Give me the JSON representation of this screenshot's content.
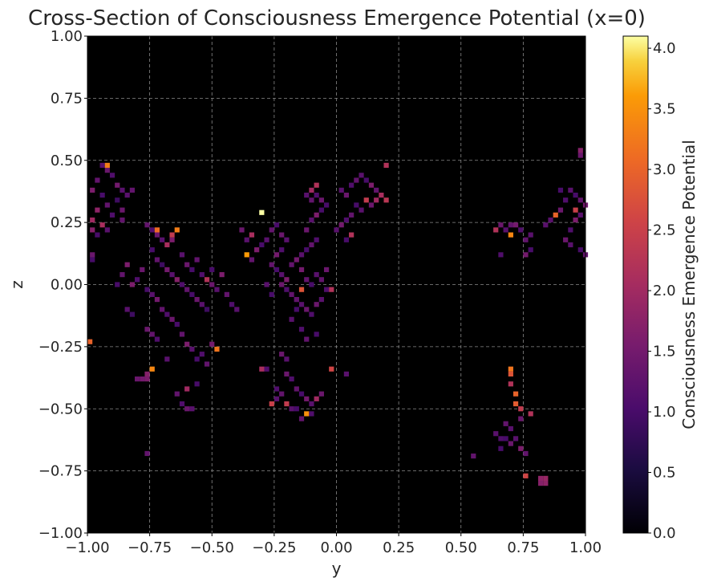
{
  "chart_data": {
    "type": "heatmap",
    "title": "Cross-Section of Consciousness Emergence Potential (x=0)",
    "xlabel": "y",
    "ylabel": "z",
    "xlim": [
      -1.0,
      1.0
    ],
    "ylim": [
      -1.0,
      1.0
    ],
    "xticks": [
      "−1.00",
      "−0.75",
      "−0.50",
      "−0.25",
      "0.00",
      "0.25",
      "0.50",
      "0.75",
      "1.00"
    ],
    "yticks": [
      "1.00",
      "0.75",
      "0.50",
      "0.25",
      "0.00",
      "−0.25",
      "−0.50",
      "−0.75",
      "−1.00"
    ],
    "grid": true,
    "colormap": "inferno",
    "background": "#000000",
    "colorbar": {
      "label": "Consciousness Emergence Potential",
      "range": [
        0.0,
        4.1
      ],
      "ticks": [
        "4.0",
        "3.5",
        "3.0",
        "2.5",
        "2.0",
        "1.5",
        "1.0",
        "0.5",
        "0.0"
      ]
    },
    "cell_size": 0.02,
    "points": [
      [
        -0.94,
        0.48,
        1.2
      ],
      [
        -0.92,
        0.46,
        1.4
      ],
      [
        -0.9,
        0.44,
        1.1
      ],
      [
        -0.96,
        0.42,
        1.3
      ],
      [
        -0.98,
        0.38,
        1.6
      ],
      [
        -0.94,
        0.36,
        1.0
      ],
      [
        -0.88,
        0.4,
        1.5
      ],
      [
        -0.86,
        0.38,
        1.2
      ],
      [
        -0.92,
        0.32,
        1.3
      ],
      [
        -0.96,
        0.3,
        1.8
      ],
      [
        -0.98,
        0.26,
        2.0
      ],
      [
        -0.9,
        0.28,
        1.1
      ],
      [
        -0.86,
        0.3,
        1.4
      ],
      [
        -0.88,
        0.34,
        0.9
      ],
      [
        -0.84,
        0.36,
        1.2
      ],
      [
        -0.82,
        0.38,
        1.3
      ],
      [
        -0.94,
        0.24,
        2.1
      ],
      [
        -0.92,
        0.22,
        1.2
      ],
      [
        -0.96,
        0.2,
        1.0
      ],
      [
        -0.98,
        0.22,
        1.7
      ],
      [
        -0.92,
        0.48,
        3.3
      ],
      [
        -0.98,
        0.12,
        1.4
      ],
      [
        -0.98,
        0.1,
        1.0
      ],
      [
        -0.86,
        0.26,
        1.3
      ],
      [
        -0.76,
        0.24,
        1.3
      ],
      [
        -0.74,
        0.22,
        1.1
      ],
      [
        -0.72,
        0.2,
        1.4
      ],
      [
        -0.7,
        0.18,
        1.2
      ],
      [
        -0.68,
        0.16,
        2.1
      ],
      [
        -0.66,
        0.18,
        1.6
      ],
      [
        -0.74,
        0.14,
        1.0
      ],
      [
        -0.72,
        0.1,
        1.3
      ],
      [
        -0.7,
        0.08,
        0.9
      ],
      [
        -0.68,
        0.06,
        1.5
      ],
      [
        -0.66,
        0.04,
        1.2
      ],
      [
        -0.64,
        0.02,
        1.7
      ],
      [
        -0.62,
        0.0,
        1.1
      ],
      [
        -0.6,
        -0.02,
        1.3
      ],
      [
        -0.58,
        -0.04,
        1.0
      ],
      [
        -0.56,
        -0.06,
        1.4
      ],
      [
        -0.54,
        -0.08,
        1.2
      ],
      [
        -0.52,
        -0.1,
        0.9
      ],
      [
        -0.78,
        0.06,
        1.4
      ],
      [
        -0.8,
        0.02,
        1.1
      ],
      [
        -0.82,
        0.0,
        1.6
      ],
      [
        -0.76,
        -0.02,
        1.0
      ],
      [
        -0.74,
        -0.04,
        1.2
      ],
      [
        -0.72,
        -0.06,
        1.5
      ],
      [
        -0.7,
        -0.1,
        1.3
      ],
      [
        -0.68,
        -0.12,
        1.1
      ],
      [
        -0.66,
        -0.14,
        1.4
      ],
      [
        -0.64,
        -0.16,
        1.0
      ],
      [
        -0.62,
        -0.2,
        1.3
      ],
      [
        -0.6,
        -0.24,
        1.6
      ],
      [
        -0.58,
        -0.26,
        1.2
      ],
      [
        -0.56,
        -0.3,
        1.0
      ],
      [
        -0.74,
        -0.2,
        1.3
      ],
      [
        -0.72,
        -0.22,
        1.1
      ],
      [
        -0.76,
        -0.18,
        1.4
      ],
      [
        -0.84,
        0.08,
        1.6
      ],
      [
        -0.86,
        0.04,
        1.3
      ],
      [
        -0.88,
        0.0,
        1.0
      ],
      [
        -0.84,
        -0.1,
        1.2
      ],
      [
        -0.82,
        -0.12,
        0.9
      ],
      [
        -0.72,
        0.22,
        3.1
      ],
      [
        -0.66,
        0.2,
        2.4
      ],
      [
        -0.64,
        0.22,
        3.3
      ],
      [
        -0.62,
        0.12,
        1.2
      ],
      [
        -0.6,
        0.08,
        1.4
      ],
      [
        -0.58,
        0.06,
        1.0
      ],
      [
        -0.56,
        0.1,
        1.3
      ],
      [
        -0.54,
        0.04,
        1.1
      ],
      [
        -0.52,
        0.02,
        2.2
      ],
      [
        -0.5,
        0.0,
        1.4
      ],
      [
        -0.48,
        -0.02,
        1.2
      ],
      [
        -0.5,
        0.06,
        1.0
      ],
      [
        -0.46,
        0.04,
        1.6
      ],
      [
        -0.44,
        -0.04,
        1.3
      ],
      [
        -0.42,
        -0.08,
        1.1
      ],
      [
        -0.4,
        -0.1,
        1.2
      ],
      [
        -0.76,
        -0.36,
        1.7
      ],
      [
        -0.74,
        -0.34,
        3.4
      ],
      [
        -0.78,
        -0.38,
        1.5
      ],
      [
        -0.76,
        -0.38,
        1.6
      ],
      [
        -0.8,
        -0.38,
        1.4
      ],
      [
        -0.68,
        -0.3,
        1.2
      ],
      [
        -0.64,
        -0.44,
        1.3
      ],
      [
        -0.62,
        -0.48,
        1.1
      ],
      [
        -0.6,
        -0.5,
        1.4
      ],
      [
        -0.58,
        -0.5,
        1.2
      ],
      [
        -0.6,
        -0.42,
        2.0
      ],
      [
        -0.56,
        -0.4,
        1.0
      ],
      [
        -0.5,
        -0.24,
        1.5
      ],
      [
        -0.48,
        -0.26,
        3.2
      ],
      [
        -0.54,
        -0.28,
        1.1
      ],
      [
        -0.52,
        -0.32,
        1.3
      ],
      [
        -0.76,
        -0.68,
        1.3
      ],
      [
        -1.0,
        -0.23,
        3.0
      ],
      [
        -0.38,
        0.22,
        1.4
      ],
      [
        -0.36,
        0.18,
        1.2
      ],
      [
        -0.34,
        0.2,
        2.1
      ],
      [
        -0.36,
        0.12,
        3.6
      ],
      [
        -0.34,
        0.1,
        1.3
      ],
      [
        -0.32,
        0.14,
        1.6
      ],
      [
        -0.3,
        0.16,
        1.0
      ],
      [
        -0.28,
        0.18,
        1.2
      ],
      [
        -0.3,
        0.29,
        4.1
      ],
      [
        -0.26,
        0.22,
        1.3
      ],
      [
        -0.24,
        0.24,
        1.0
      ],
      [
        -0.22,
        0.2,
        1.4
      ],
      [
        -0.2,
        0.18,
        1.2
      ],
      [
        -0.22,
        0.14,
        1.1
      ],
      [
        -0.24,
        0.12,
        1.5
      ],
      [
        -0.26,
        0.08,
        1.3
      ],
      [
        -0.24,
        0.06,
        1.0
      ],
      [
        -0.22,
        0.04,
        1.2
      ],
      [
        -0.2,
        0.02,
        1.6
      ],
      [
        -0.22,
        0.0,
        1.4
      ],
      [
        -0.2,
        -0.02,
        1.1
      ],
      [
        -0.18,
        -0.04,
        1.3
      ],
      [
        -0.16,
        -0.06,
        1.0
      ],
      [
        -0.14,
        -0.08,
        1.2
      ],
      [
        -0.12,
        -0.1,
        1.4
      ],
      [
        -0.1,
        -0.12,
        1.1
      ],
      [
        -0.18,
        0.08,
        1.3
      ],
      [
        -0.16,
        0.1,
        1.5
      ],
      [
        -0.14,
        0.12,
        1.2
      ],
      [
        -0.12,
        0.14,
        1.0
      ],
      [
        -0.1,
        0.16,
        1.3
      ],
      [
        -0.08,
        0.18,
        1.1
      ],
      [
        -0.12,
        0.22,
        1.4
      ],
      [
        -0.1,
        0.26,
        1.2
      ],
      [
        -0.08,
        0.28,
        1.6
      ],
      [
        -0.06,
        0.3,
        1.0
      ],
      [
        -0.1,
        0.34,
        1.3
      ],
      [
        -0.08,
        0.36,
        1.1
      ],
      [
        -0.1,
        0.38,
        2.0
      ],
      [
        -0.12,
        0.36,
        1.2
      ],
      [
        -0.06,
        0.34,
        1.4
      ],
      [
        -0.04,
        0.32,
        1.0
      ],
      [
        -0.06,
        0.02,
        1.3
      ],
      [
        -0.04,
        -0.02,
        1.1
      ],
      [
        -0.06,
        -0.06,
        1.2
      ],
      [
        -0.08,
        -0.08,
        1.4
      ],
      [
        -0.16,
        -0.1,
        1.0
      ],
      [
        -0.18,
        -0.14,
        1.2
      ],
      [
        -0.14,
        -0.18,
        1.1
      ],
      [
        -0.12,
        -0.22,
        1.3
      ],
      [
        -0.08,
        -0.2,
        1.0
      ],
      [
        -0.14,
        0.06,
        1.5
      ],
      [
        -0.12,
        0.02,
        1.3
      ],
      [
        -0.1,
        0.0,
        1.0
      ],
      [
        -0.08,
        0.04,
        1.2
      ],
      [
        -0.04,
        0.06,
        1.4
      ],
      [
        -0.02,
        -0.02,
        2.2
      ],
      [
        -0.28,
        0.0,
        1.2
      ],
      [
        -0.26,
        -0.04,
        1.0
      ],
      [
        -0.16,
        -0.06,
        1.3
      ],
      [
        -0.14,
        -0.02,
        2.8
      ],
      [
        -0.08,
        0.4,
        2.2
      ],
      [
        -0.22,
        -0.28,
        1.4
      ],
      [
        -0.2,
        -0.3,
        1.2
      ],
      [
        -0.18,
        -0.38,
        1.1
      ],
      [
        -0.16,
        -0.42,
        1.3
      ],
      [
        -0.14,
        -0.44,
        1.0
      ],
      [
        -0.12,
        -0.46,
        1.5
      ],
      [
        -0.1,
        -0.48,
        1.2
      ],
      [
        -0.08,
        -0.46,
        2.0
      ],
      [
        -0.06,
        -0.44,
        1.4
      ],
      [
        -0.22,
        -0.44,
        1.3
      ],
      [
        -0.24,
        -0.42,
        1.1
      ],
      [
        -0.2,
        -0.48,
        2.4
      ],
      [
        -0.18,
        -0.5,
        1.2
      ],
      [
        -0.16,
        -0.5,
        1.0
      ],
      [
        -0.12,
        -0.52,
        3.5
      ],
      [
        -0.14,
        -0.54,
        1.3
      ],
      [
        -0.1,
        -0.52,
        1.1
      ],
      [
        -0.26,
        -0.48,
        2.5
      ],
      [
        -0.24,
        -0.46,
        1.2
      ],
      [
        -0.2,
        -0.36,
        1.4
      ],
      [
        -0.28,
        -0.34,
        1.1
      ],
      [
        -0.3,
        -0.34,
        2.1
      ],
      [
        -0.02,
        -0.34,
        2.6
      ],
      [
        0.04,
        -0.36,
        1.2
      ],
      [
        0.02,
        0.38,
        1.2
      ],
      [
        0.04,
        0.36,
        1.4
      ],
      [
        0.06,
        0.4,
        1.1
      ],
      [
        0.08,
        0.42,
        1.3
      ],
      [
        0.1,
        0.44,
        1.2
      ],
      [
        0.12,
        0.42,
        1.0
      ],
      [
        0.14,
        0.4,
        1.6
      ],
      [
        0.16,
        0.38,
        1.3
      ],
      [
        0.18,
        0.36,
        2.1
      ],
      [
        0.2,
        0.34,
        2.3
      ],
      [
        0.2,
        0.48,
        2.2
      ],
      [
        0.14,
        0.32,
        1.4
      ],
      [
        0.12,
        0.34,
        2.4
      ],
      [
        0.1,
        0.3,
        1.2
      ],
      [
        0.08,
        0.32,
        1.0
      ],
      [
        0.06,
        0.28,
        1.3
      ],
      [
        0.04,
        0.26,
        1.1
      ],
      [
        0.02,
        0.24,
        1.5
      ],
      [
        0.0,
        0.22,
        1.2
      ],
      [
        0.04,
        0.18,
        1.0
      ],
      [
        0.06,
        0.2,
        2.2
      ],
      [
        0.16,
        0.34,
        2.0
      ],
      [
        0.66,
        0.24,
        1.4
      ],
      [
        0.68,
        0.22,
        1.2
      ],
      [
        0.7,
        0.2,
        3.4
      ],
      [
        0.72,
        0.24,
        1.5
      ],
      [
        0.74,
        0.22,
        1.1
      ],
      [
        0.76,
        0.18,
        1.3
      ],
      [
        0.78,
        0.2,
        1.2
      ],
      [
        0.78,
        0.14,
        1.0
      ],
      [
        0.76,
        0.12,
        1.5
      ],
      [
        0.7,
        0.24,
        1.3
      ],
      [
        0.66,
        0.12,
        1.1
      ],
      [
        0.64,
        0.22,
        2.2
      ],
      [
        0.86,
        0.26,
        1.2
      ],
      [
        0.88,
        0.28,
        3.0
      ],
      [
        0.9,
        0.3,
        1.4
      ],
      [
        0.92,
        0.34,
        1.1
      ],
      [
        0.94,
        0.38,
        1.2
      ],
      [
        0.96,
        0.36,
        1.0
      ],
      [
        0.98,
        0.34,
        1.3
      ],
      [
        1.0,
        0.32,
        1.5
      ],
      [
        0.98,
        0.28,
        1.2
      ],
      [
        0.96,
        0.26,
        1.6
      ],
      [
        0.94,
        0.22,
        1.1
      ],
      [
        0.92,
        0.18,
        1.4
      ],
      [
        0.94,
        0.16,
        1.2
      ],
      [
        0.98,
        0.14,
        1.0
      ],
      [
        1.0,
        0.12,
        1.3
      ],
      [
        0.96,
        0.3,
        2.5
      ],
      [
        0.98,
        0.54,
        1.7
      ],
      [
        0.98,
        0.52,
        1.4
      ],
      [
        0.9,
        0.38,
        1.0
      ],
      [
        0.84,
        0.24,
        1.2
      ],
      [
        0.7,
        -0.34,
        3.2
      ],
      [
        0.7,
        -0.36,
        2.8
      ],
      [
        0.7,
        -0.4,
        2.2
      ],
      [
        0.72,
        -0.44,
        3.0
      ],
      [
        0.72,
        -0.48,
        2.9
      ],
      [
        0.74,
        -0.5,
        2.4
      ],
      [
        0.68,
        -0.56,
        1.3
      ],
      [
        0.7,
        -0.58,
        1.2
      ],
      [
        0.66,
        -0.62,
        1.1
      ],
      [
        0.68,
        -0.62,
        1.0
      ],
      [
        0.7,
        -0.64,
        1.4
      ],
      [
        0.72,
        -0.62,
        1.2
      ],
      [
        0.74,
        -0.66,
        1.6
      ],
      [
        0.76,
        -0.68,
        1.3
      ],
      [
        0.78,
        -0.52,
        2.2
      ],
      [
        0.64,
        -0.6,
        1.2
      ],
      [
        0.66,
        -0.66,
        1.0
      ],
      [
        0.82,
        -0.78,
        1.8
      ],
      [
        0.84,
        -0.78,
        1.9
      ],
      [
        0.82,
        -0.8,
        1.7
      ],
      [
        0.84,
        -0.8,
        1.8
      ],
      [
        0.76,
        -0.77,
        2.6
      ],
      [
        0.55,
        -0.69,
        1.3
      ],
      [
        0.74,
        -0.54,
        1.4
      ]
    ]
  }
}
